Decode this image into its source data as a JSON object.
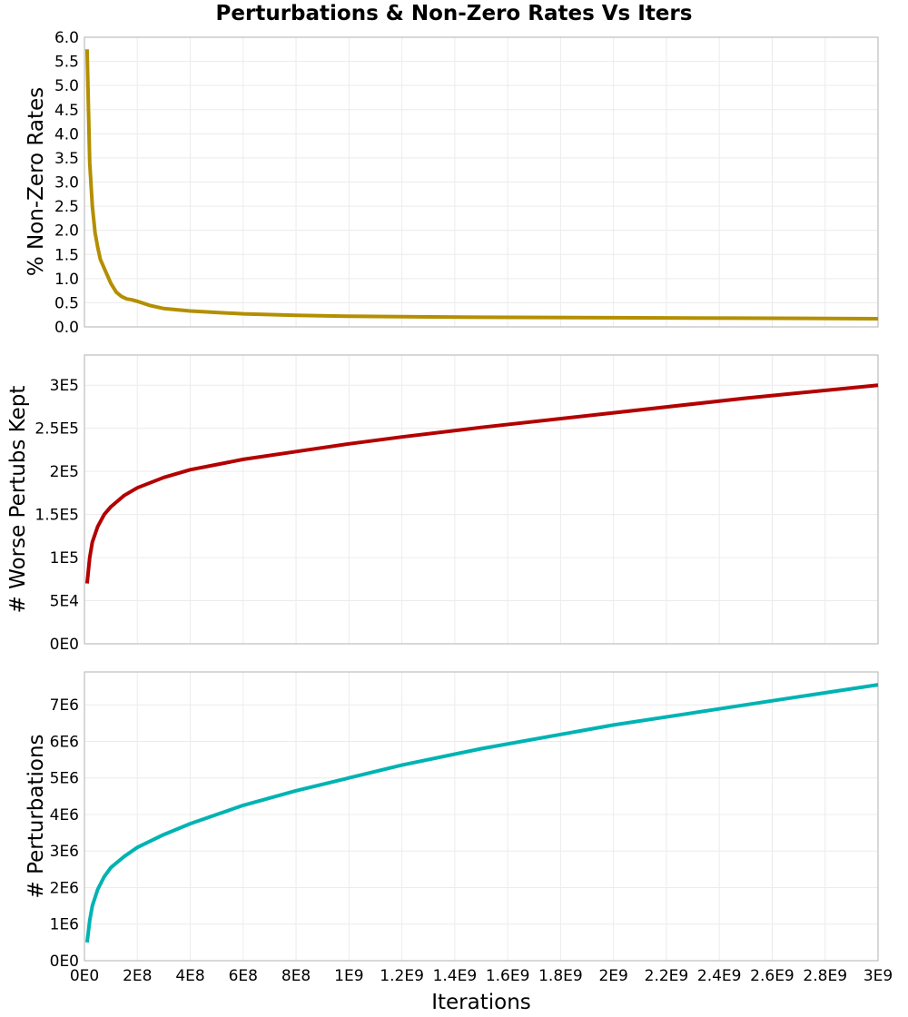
{
  "title": "Perturbations & Non-Zero Rates Vs Iters",
  "xaxis": {
    "label": "Iterations",
    "range": [
      0,
      3000000000
    ],
    "ticks": [
      0,
      200000000,
      400000000,
      600000000,
      800000000,
      1000000000,
      1200000000,
      1400000000,
      1600000000,
      1800000000,
      2000000000,
      2200000000,
      2400000000,
      2600000000,
      2800000000,
      3000000000
    ],
    "tick_labels": [
      "0E0",
      "2E8",
      "4E8",
      "6E8",
      "8E8",
      "1E9",
      "1.2E9",
      "1.4E9",
      "1.6E9",
      "1.8E9",
      "2E9",
      "2.2E9",
      "2.4E9",
      "2.6E9",
      "2.8E9",
      "3E9"
    ]
  },
  "chart_data": [
    {
      "type": "line",
      "title": "Perturbations & Non-Zero Rates Vs Iters",
      "xlabel": "Iterations",
      "ylabel": "% Non-Zero Rates",
      "ylim": [
        0,
        6.0
      ],
      "yticks": [
        0,
        0.5,
        1.0,
        1.5,
        2.0,
        2.5,
        3.0,
        3.5,
        4.0,
        4.5,
        5.0,
        5.5,
        6.0
      ],
      "ytick_labels": [
        "0.0",
        "0.5",
        "1.0",
        "1.5",
        "2.0",
        "2.5",
        "3.0",
        "3.5",
        "4.0",
        "4.5",
        "5.0",
        "5.5",
        "6.0"
      ],
      "grid": true,
      "color": "#b38f00",
      "series": [
        {
          "name": "% Non-Zero Rates",
          "x": [
            10000000,
            20000000,
            30000000,
            40000000,
            50000000,
            60000000,
            80000000,
            100000000,
            120000000,
            140000000,
            160000000,
            180000000,
            200000000,
            250000000,
            300000000,
            400000000,
            500000000,
            600000000,
            800000000,
            1000000000,
            1200000000,
            1500000000,
            2000000000,
            2500000000,
            3000000000
          ],
          "values": [
            5.75,
            3.4,
            2.5,
            1.95,
            1.65,
            1.4,
            1.15,
            0.9,
            0.72,
            0.63,
            0.58,
            0.56,
            0.53,
            0.44,
            0.38,
            0.33,
            0.3,
            0.27,
            0.24,
            0.22,
            0.21,
            0.2,
            0.19,
            0.18,
            0.17
          ]
        }
      ]
    },
    {
      "type": "line",
      "xlabel": "Iterations",
      "ylabel": "# Worse Pertubs Kept",
      "ylim": [
        0,
        335000
      ],
      "yticks": [
        0,
        50000,
        100000,
        150000,
        200000,
        250000,
        300000
      ],
      "ytick_labels": [
        "0E0",
        "5E4",
        "1E5",
        "1.5E5",
        "2E5",
        "2.5E5",
        "3E5"
      ],
      "grid": true,
      "color": "#b30000",
      "series": [
        {
          "name": "# Worse Pertubs Kept",
          "x": [
            10000000,
            20000000,
            30000000,
            50000000,
            75000000,
            100000000,
            150000000,
            200000000,
            300000000,
            400000000,
            500000000,
            600000000,
            800000000,
            1000000000,
            1200000000,
            1500000000,
            2000000000,
            2500000000,
            3000000000
          ],
          "values": [
            70000,
            100000,
            118000,
            136000,
            150000,
            159000,
            172000,
            181000,
            193000,
            202000,
            208000,
            214000,
            223000,
            232000,
            240000,
            251000,
            268000,
            285000,
            300000
          ]
        }
      ]
    },
    {
      "type": "line",
      "xlabel": "Iterations",
      "ylabel": "# Perturbations",
      "ylim": [
        0,
        7900000
      ],
      "yticks": [
        0,
        1000000,
        2000000,
        3000000,
        4000000,
        5000000,
        6000000,
        7000000
      ],
      "ytick_labels": [
        "0E0",
        "1E6",
        "2E6",
        "3E6",
        "4E6",
        "5E6",
        "6E6",
        "7E6"
      ],
      "grid": true,
      "color": "#00b3b3",
      "series": [
        {
          "name": "# Perturbations",
          "x": [
            10000000,
            20000000,
            30000000,
            50000000,
            75000000,
            100000000,
            150000000,
            200000000,
            300000000,
            400000000,
            500000000,
            600000000,
            800000000,
            1000000000,
            1200000000,
            1500000000,
            2000000000,
            2500000000,
            3000000000
          ],
          "values": [
            500000,
            1100000,
            1500000,
            1950000,
            2300000,
            2550000,
            2850000,
            3100000,
            3450000,
            3750000,
            4000000,
            4250000,
            4650000,
            5000000,
            5350000,
            5800000,
            6450000,
            7000000,
            7550000
          ]
        }
      ]
    }
  ]
}
